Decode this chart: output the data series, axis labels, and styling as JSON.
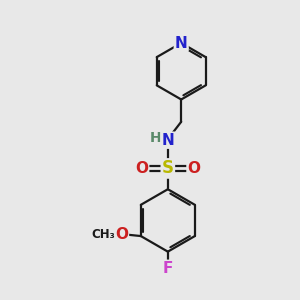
{
  "bg_color": "#e8e8e8",
  "bond_color": "#1a1a1a",
  "bond_width": 1.6,
  "N_color": "#2222cc",
  "O_color": "#cc2020",
  "S_color": "#b8b800",
  "F_color": "#cc44cc",
  "H_color": "#5a8a6a",
  "C_color": "#1a1a1a",
  "font_size_atom": 11,
  "font_size_small": 9,
  "figsize": [
    3.0,
    3.0
  ],
  "dpi": 100,
  "xlim": [
    0,
    10
  ],
  "ylim": [
    0,
    10
  ]
}
